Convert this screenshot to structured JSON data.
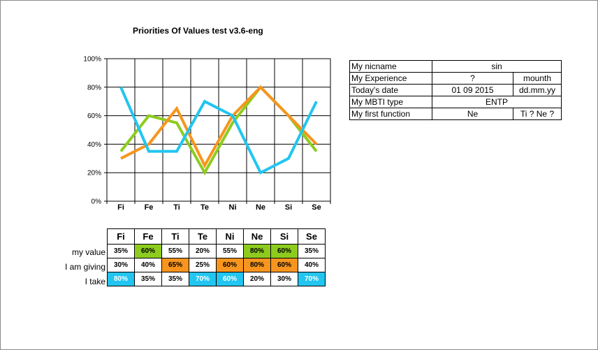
{
  "title": "Priorities Of Values test v3.6-eng",
  "chart_data": {
    "type": "line",
    "categories": [
      "Fi",
      "Fe",
      "Ti",
      "Te",
      "Ni",
      "Ne",
      "Si",
      "Se"
    ],
    "ylim": [
      0,
      100
    ],
    "yticks": [
      "0%",
      "20%",
      "40%",
      "60%",
      "80%",
      "100%"
    ],
    "grid": true,
    "series": [
      {
        "name": "my value",
        "color": "#8dcc1e",
        "values": [
          35,
          60,
          55,
          20,
          55,
          80,
          60,
          35
        ]
      },
      {
        "name": "I am giving",
        "color": "#f7951e",
        "values": [
          30,
          40,
          65,
          25,
          60,
          80,
          60,
          40
        ]
      },
      {
        "name": "I take",
        "color": "#22c5f0",
        "values": [
          80,
          35,
          35,
          70,
          60,
          20,
          30,
          70
        ]
      }
    ]
  },
  "info": {
    "rows": [
      {
        "label": "My nicname",
        "value": "sin",
        "extra": null
      },
      {
        "label": "My Experience",
        "value": "?",
        "extra": "mounth"
      },
      {
        "label": "Today's date",
        "value": "01 09 2015",
        "extra": "dd.mm.yy"
      },
      {
        "label": "My MBTI type",
        "value": "ENTP",
        "extra": null
      },
      {
        "label": "My first function",
        "value": "Ne",
        "extra": "Ti ? Ne ?"
      }
    ]
  },
  "table": {
    "headers": [
      "Fi",
      "Fe",
      "Ti",
      "Te",
      "Ni",
      "Ne",
      "Si",
      "Se"
    ],
    "rows": [
      {
        "label": "my value",
        "cells": [
          "35%",
          "60%",
          "55%",
          "20%",
          "55%",
          "80%",
          "60%",
          "35%"
        ],
        "highlight": [
          false,
          true,
          false,
          false,
          false,
          true,
          true,
          false
        ],
        "color": "#8dcc1e",
        "text_color": "#000000"
      },
      {
        "label": "I am giving",
        "cells": [
          "30%",
          "40%",
          "65%",
          "25%",
          "60%",
          "80%",
          "60%",
          "40%"
        ],
        "highlight": [
          false,
          false,
          true,
          false,
          true,
          true,
          true,
          false
        ],
        "color": "#f7951e",
        "text_color": "#000000"
      },
      {
        "label": "I take",
        "cells": [
          "80%",
          "35%",
          "35%",
          "70%",
          "60%",
          "20%",
          "30%",
          "70%"
        ],
        "highlight": [
          true,
          false,
          false,
          true,
          true,
          false,
          false,
          true
        ],
        "color": "#22c5f0",
        "text_color": "#ffffff"
      }
    ]
  }
}
